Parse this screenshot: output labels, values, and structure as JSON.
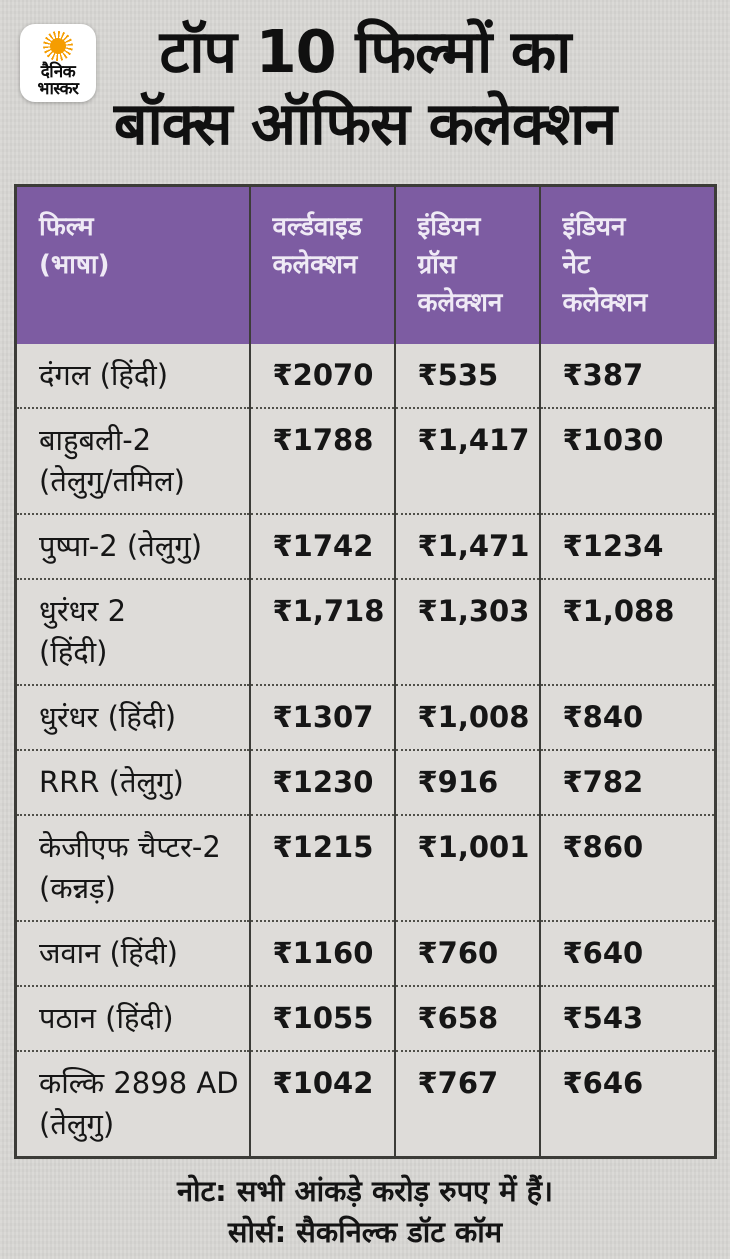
{
  "colors": {
    "page_bg": "#d8d7d4",
    "table_bg": "#dedcd9",
    "header_purple": "#7d5ca2",
    "header_text": "#efeaf5",
    "body_text": "#161616",
    "border": "#3c3c38",
    "logo_sun": "#f59d00"
  },
  "logo": {
    "line1": "दैनिक",
    "line2": "भास्कर",
    "sun_icon": "orange-sunburst"
  },
  "title": "टॉप 10 फिल्मों का\nबॉक्स ऑफिस कलेक्शन",
  "table": {
    "headers": [
      "फिल्म\n(भाषा)",
      "वर्ल्डवाइड\nकलेक्शन",
      "इंडियन\nग्रॉस\nकलेक्शन",
      "इंडियन\nनेट\nकलेक्शन"
    ],
    "header_names": [
      "header-film-language",
      "header-worldwide-collection",
      "header-indian-gross-collection",
      "header-indian-net-collection"
    ],
    "cell_names": [
      "film-cell",
      "worldwide-value-cell",
      "indian-gross-value-cell",
      "indian-net-value-cell"
    ],
    "rows": [
      {
        "cells": [
          "दंगल (हिंदी)",
          "₹2070",
          "₹535",
          "₹387"
        ]
      },
      {
        "cells": [
          "बाहुबली-2\n(तेलुगु/तमिल)",
          "₹1788",
          "₹1,417",
          "₹1030"
        ]
      },
      {
        "cells": [
          "पुष्पा-2 (तेलुगु)",
          "₹1742",
          "₹1,471",
          "₹1234"
        ]
      },
      {
        "cells": [
          "धुरंधर 2\n(हिंदी)",
          "₹1,718",
          "₹1,303",
          "₹1,088"
        ]
      },
      {
        "cells": [
          "धुरंधर (हिंदी)",
          "₹1307",
          "₹1,008",
          "₹840"
        ]
      },
      {
        "cells": [
          "RRR (तेलुगु)",
          "₹1230",
          "₹916",
          "₹782"
        ]
      },
      {
        "cells": [
          "केजीएफ चैप्टर-2\n(कन्नड़)",
          "₹1215",
          "₹1,001",
          "₹860"
        ]
      },
      {
        "cells": [
          "जवान (हिंदी)",
          "₹1160",
          "₹760",
          "₹640"
        ]
      },
      {
        "cells": [
          "पठान (हिंदी)",
          "₹1055",
          "₹658",
          "₹543"
        ]
      },
      {
        "cells": [
          "कल्कि 2898 AD\n(तेलुगु)",
          "₹1042",
          "₹767",
          "₹646"
        ]
      }
    ]
  },
  "footer": {
    "note": "नोट: सभी आंकड़े करोड़ रुपए में हैं।",
    "source": "सोर्स: सैकनिल्क डॉट कॉम"
  },
  "chart_data": {
    "type": "table",
    "title": "टॉप 10 फिल्मों का बॉक्स ऑफिस कलेक्शन",
    "columns": [
      "फिल्म (भाषा)",
      "वर्ल्डवाइड कलेक्शन",
      "इंडियन ग्रॉस कलेक्शन",
      "इंडियन नेट कलेक्शन"
    ],
    "unit": "करोड़ रुपए",
    "rows": [
      {
        "film": "दंगल",
        "language": "हिंदी",
        "worldwide": 2070,
        "indian_gross": 535,
        "indian_net": 387
      },
      {
        "film": "बाहुबली-2",
        "language": "तेलुगु/तमिल",
        "worldwide": 1788,
        "indian_gross": 1417,
        "indian_net": 1030
      },
      {
        "film": "पुष्पा-2",
        "language": "तेलुगु",
        "worldwide": 1742,
        "indian_gross": 1471,
        "indian_net": 1234
      },
      {
        "film": "धुरंधर 2",
        "language": "हिंदी",
        "worldwide": 1718,
        "indian_gross": 1303,
        "indian_net": 1088
      },
      {
        "film": "धुरंधर",
        "language": "हिंदी",
        "worldwide": 1307,
        "indian_gross": 1008,
        "indian_net": 840
      },
      {
        "film": "RRR",
        "language": "तेलुगु",
        "worldwide": 1230,
        "indian_gross": 916,
        "indian_net": 782
      },
      {
        "film": "केजीएफ चैप्टर-2",
        "language": "कन्नड़",
        "worldwide": 1215,
        "indian_gross": 1001,
        "indian_net": 860
      },
      {
        "film": "जवान",
        "language": "हिंदी",
        "worldwide": 1160,
        "indian_gross": 760,
        "indian_net": 640
      },
      {
        "film": "पठान",
        "language": "हिंदी",
        "worldwide": 1055,
        "indian_gross": 658,
        "indian_net": 543
      },
      {
        "film": "कल्कि 2898 AD",
        "language": "तेलुगु",
        "worldwide": 1042,
        "indian_gross": 767,
        "indian_net": 646
      }
    ],
    "note": "सभी आंकड़े करोड़ रुपए में हैं।",
    "source": "सैकनिल्क डॉट कॉम"
  }
}
